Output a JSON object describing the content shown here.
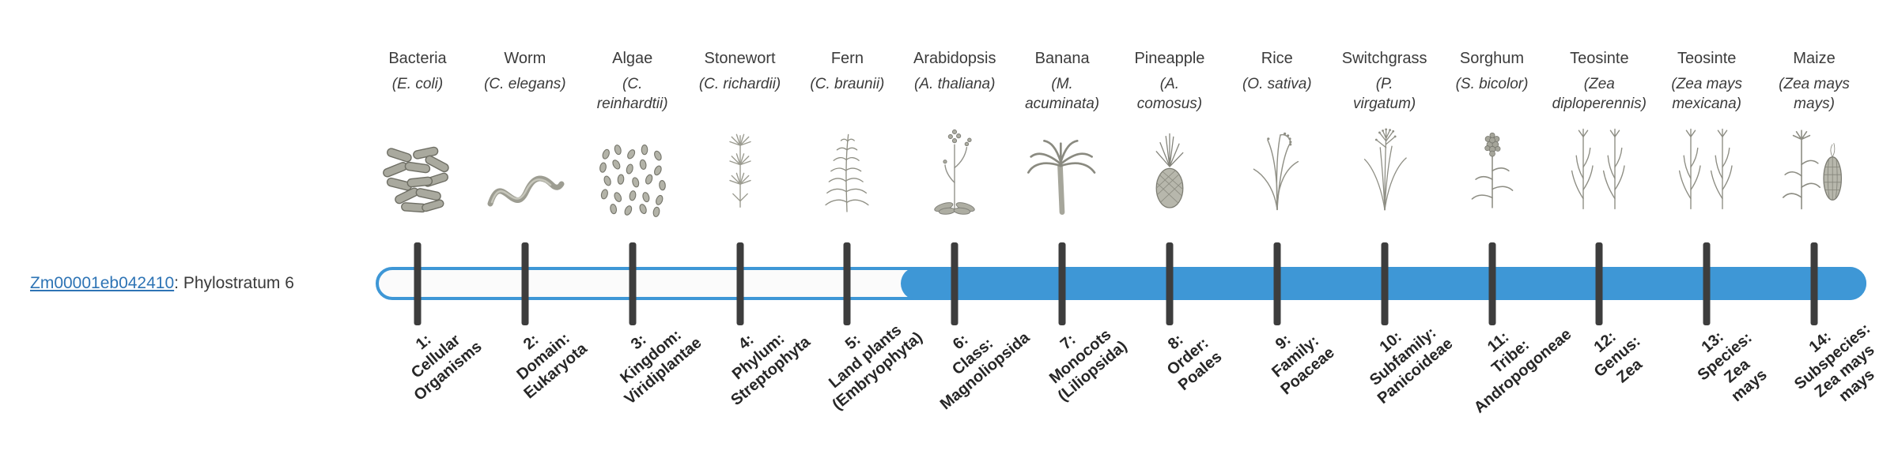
{
  "gene": {
    "link_text": "Zm00001eb042410",
    "suffix": ": Phylostratum 6"
  },
  "bar": {
    "strata_count": 14,
    "fill_start_stratum": 6,
    "fill_color": "#3e97d6",
    "outline_color": "#3e97d6",
    "tick_color": "#3d3d3d"
  },
  "organisms": [
    {
      "name": "Bacteria",
      "sci": "(E. coli)",
      "icon": "bacteria-icon"
    },
    {
      "name": "Worm",
      "sci": "(C. elegans)",
      "icon": "worm-icon"
    },
    {
      "name": "Algae",
      "sci": "(C.\nreinhardtii)",
      "icon": "algae-icon"
    },
    {
      "name": "Stonewort",
      "sci": "(C. richardii)",
      "icon": "stonewort-icon"
    },
    {
      "name": "Fern",
      "sci": "(C. braunii)",
      "icon": "fern-icon"
    },
    {
      "name": "Arabidopsis",
      "sci": "(A. thaliana)",
      "icon": "arabidopsis-icon"
    },
    {
      "name": "Banana",
      "sci": "(M.\nacuminata)",
      "icon": "banana-icon"
    },
    {
      "name": "Pineapple",
      "sci": "(A.\ncomosus)",
      "icon": "pineapple-icon"
    },
    {
      "name": "Rice",
      "sci": "(O. sativa)",
      "icon": "rice-icon"
    },
    {
      "name": "Switchgrass",
      "sci": "(P.\nvirgatum)",
      "icon": "switchgrass-icon"
    },
    {
      "name": "Sorghum",
      "sci": "(S. bicolor)",
      "icon": "sorghum-icon"
    },
    {
      "name": "Teosinte",
      "sci": "(Zea\ndiploperennis)",
      "icon": "teosinte-icon"
    },
    {
      "name": "Teosinte",
      "sci": "(Zea mays\nmexicana)",
      "icon": "teosinte-icon"
    },
    {
      "name": "Maize",
      "sci": "(Zea mays\nmays)",
      "icon": "maize-icon"
    }
  ],
  "strata": [
    {
      "label": "1:\nCellular\nOrganisms"
    },
    {
      "label": "2:\nDomain:\nEukaryota"
    },
    {
      "label": "3:\nKingdom:\nViridiplantae"
    },
    {
      "label": "4:\nPhylum:\nStreptophyta"
    },
    {
      "label": "5:\nLand plants\n(Embryophyta)"
    },
    {
      "label": "6:\nClass:\nMagnoliopsida"
    },
    {
      "label": "7:\nMonocots\n(Liliopsida)"
    },
    {
      "label": "8:\nOrder:\nPoales"
    },
    {
      "label": "9:\nFamily:\nPoaceae"
    },
    {
      "label": "10:\nSubfamily:\nPanicoideae"
    },
    {
      "label": "11:\nTribe:\nAndropogoneae"
    },
    {
      "label": "12:\nGenus:\nZea"
    },
    {
      "label": "13:\nSpecies:\nZea\nmays"
    },
    {
      "label": "14:\nSubspecies:\nZea mays\nmays"
    }
  ]
}
